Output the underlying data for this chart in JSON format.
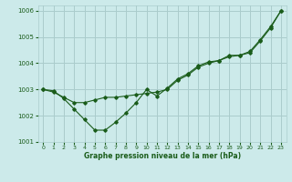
{
  "title": "Graphe pression niveau de la mer (hPa)",
  "background_color": "#cceaea",
  "grid_color": "#aacccc",
  "line_color": "#1a5c1a",
  "x_ticks": [
    0,
    1,
    2,
    3,
    4,
    5,
    6,
    7,
    8,
    9,
    10,
    11,
    12,
    13,
    14,
    15,
    16,
    17,
    18,
    19,
    20,
    21,
    22,
    23
  ],
  "ylim": [
    1001.0,
    1006.2
  ],
  "yticks": [
    1001,
    1002,
    1003,
    1004,
    1005,
    1006
  ],
  "line_smooth": [
    1003.0,
    1002.9,
    1002.7,
    1002.5,
    1002.5,
    1002.6,
    1002.7,
    1002.7,
    1002.75,
    1002.8,
    1002.85,
    1002.9,
    1003.0,
    1003.35,
    1003.55,
    1003.85,
    1004.0,
    1004.1,
    1004.25,
    1004.3,
    1004.4,
    1004.85,
    1005.35,
    1006.0
  ],
  "line_jagged": [
    1003.0,
    1002.95,
    1002.65,
    1002.25,
    1001.85,
    1001.45,
    1001.45,
    1001.75,
    1002.1,
    1002.5,
    1003.0,
    1002.75,
    1003.05,
    1003.4,
    1003.6,
    1003.9,
    1004.05,
    1004.1,
    1004.3,
    1004.3,
    1004.45,
    1004.9,
    1005.4,
    1006.0
  ]
}
